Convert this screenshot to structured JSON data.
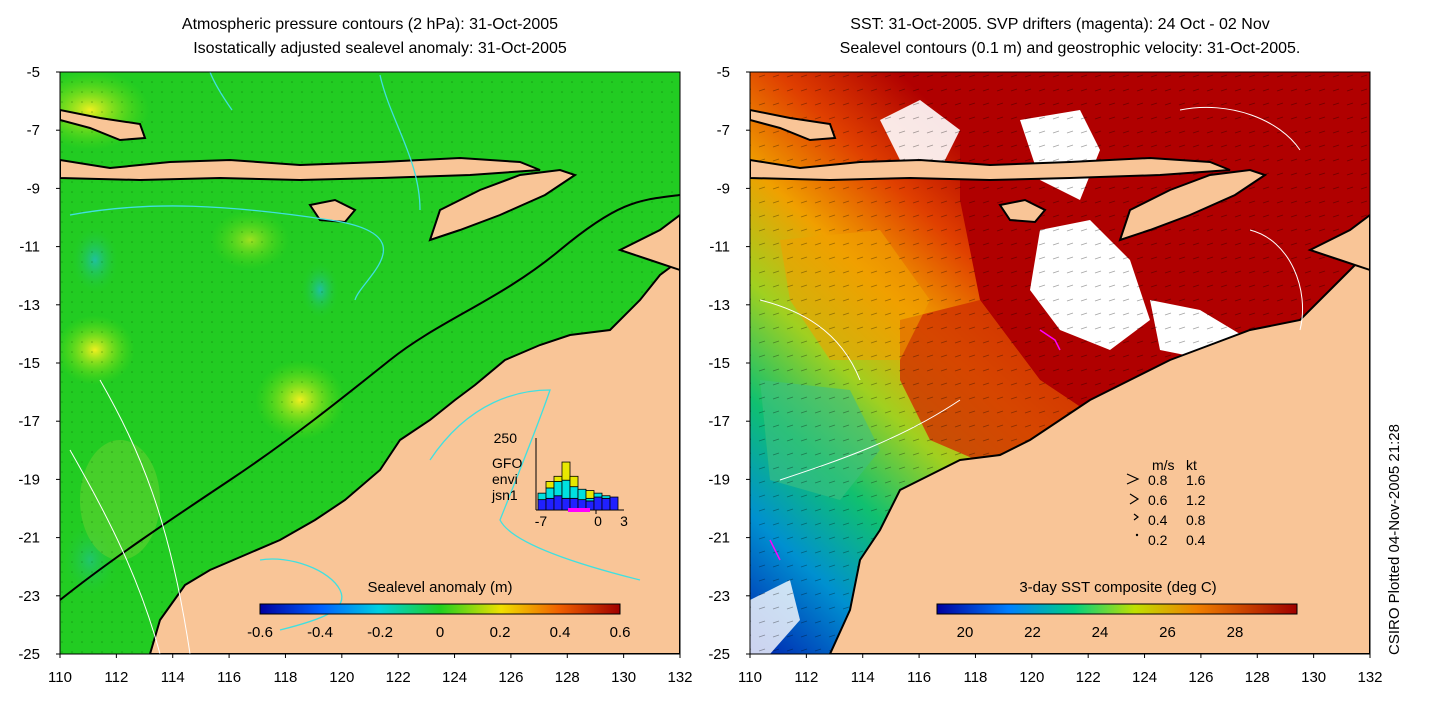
{
  "left_panel": {
    "title_line1": "Atmospheric pressure contours (2 hPa): 31-Oct-2005",
    "title_line2": "Isostatically adjusted sealevel anomaly: 31-Oct-2005",
    "y_ticks": [
      "-5",
      "-7",
      "-9",
      "-11",
      "-13",
      "-15",
      "-17",
      "-19",
      "-21",
      "-23",
      "-25"
    ],
    "x_ticks": [
      "110",
      "112",
      "114",
      "116",
      "118",
      "120",
      "122",
      "124",
      "126",
      "128",
      "130",
      "132"
    ],
    "colorbar_title": "Sealevel anomaly (m)",
    "colorbar_ticks": [
      "-0.6",
      "-0.4",
      "-0.2",
      "0",
      "0.2",
      "0.4",
      "0.6"
    ],
    "inset": {
      "ymax_label": "250",
      "x_labels": [
        "-7",
        "0",
        "3"
      ],
      "legend": [
        {
          "name": "GFO",
          "color": "#e8e800"
        },
        {
          "name": "envi",
          "color": "#00e0e0"
        },
        {
          "name": "jsn1",
          "color": "#2020ff"
        }
      ],
      "bars": [
        {
          "jsn1": 40,
          "envi": 25,
          "gfo": 0
        },
        {
          "jsn1": 45,
          "envi": 40,
          "gfo": 25
        },
        {
          "jsn1": 55,
          "envi": 55,
          "gfo": 20
        },
        {
          "jsn1": 45,
          "envi": 70,
          "gfo": 70
        },
        {
          "jsn1": 45,
          "envi": 45,
          "gfo": 40
        },
        {
          "jsn1": 40,
          "envi": 40,
          "gfo": 0
        },
        {
          "jsn1": 35,
          "envi": 10,
          "gfo": 30
        },
        {
          "jsn1": 50,
          "envi": 15,
          "gfo": 0
        },
        {
          "jsn1": 45,
          "envi": 10,
          "gfo": 0
        },
        {
          "jsn1": 50,
          "envi": 0,
          "gfo": 0
        }
      ]
    }
  },
  "right_panel": {
    "title_line1": "SST: 31-Oct-2005. SVP drifters (magenta): 24 Oct - 02 Nov",
    "title_line2": "Sealevel contours (0.1 m) and geostrophic velocity: 31-Oct-2005.",
    "y_ticks": [
      "-5",
      "-7",
      "-9",
      "-11",
      "-13",
      "-15",
      "-17",
      "-19",
      "-21",
      "-23",
      "-25"
    ],
    "x_ticks": [
      "110",
      "112",
      "114",
      "116",
      "118",
      "120",
      "122",
      "124",
      "126",
      "128",
      "130",
      "132"
    ],
    "colorbar_title": "3-day SST composite (deg C)",
    "colorbar_ticks": [
      "20",
      "22",
      "24",
      "26",
      "28"
    ],
    "velocity_legend": {
      "header_ms": "m/s",
      "header_kt": "kt",
      "rows": [
        {
          "ms": "0.8",
          "kt": "1.6"
        },
        {
          "ms": "0.6",
          "kt": "1.2"
        },
        {
          "ms": "0.4",
          "kt": "0.8"
        },
        {
          "ms": "0.2",
          "kt": "0.4"
        }
      ]
    }
  },
  "credit": "CSIRO Plotted 04-Nov-2005 21:28",
  "colors": {
    "land": "#f9c597",
    "ocean_green": "#22cc22",
    "sst_hot": "#b00000"
  }
}
